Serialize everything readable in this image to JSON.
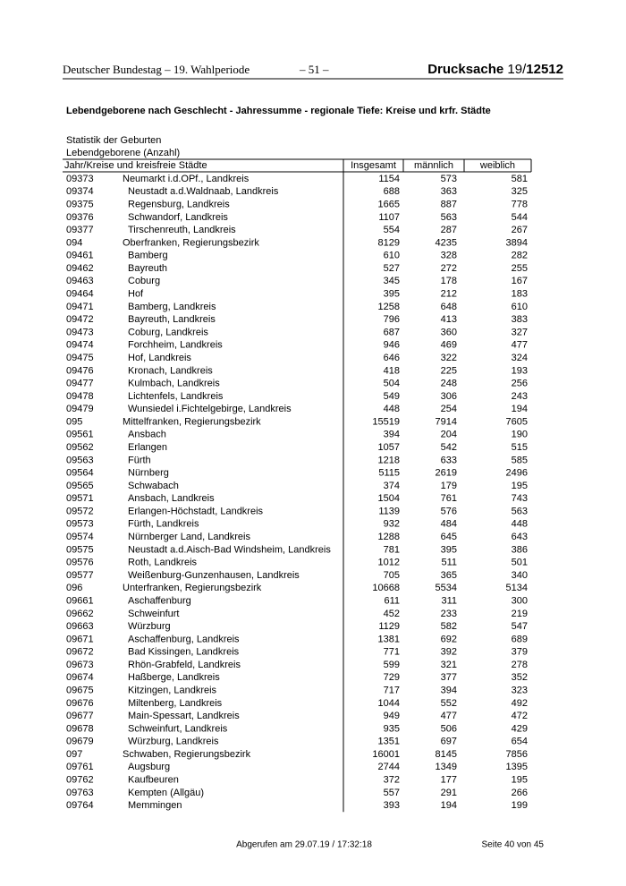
{
  "header": {
    "left": "Deutscher Bundestag – 19. Wahlperiode",
    "center": "– 51 –",
    "doc_label": "Drucksache",
    "doc_prefix": "19/",
    "doc_number": "12512"
  },
  "title": "Lebendgeborene nach Geschlecht - Jahressumme - regionale Tiefe: Kreise und krfr. Städte",
  "subtitle1": "Statistik der Geburten",
  "subtitle2": "Lebendgeborene (Anzahl)",
  "table": {
    "columns": [
      "Jahr/Kreise und kreisfreie Städte",
      "Insgesamt",
      "männlich",
      "weiblich"
    ],
    "rows": [
      [
        "09373",
        "Neumarkt i.d.OPf., Landkreis",
        1154,
        573,
        581
      ],
      [
        "09374",
        "Neustadt a.d.Waldnaab, Landkreis",
        688,
        363,
        325
      ],
      [
        "09375",
        "Regensburg, Landkreis",
        1665,
        887,
        778
      ],
      [
        "09376",
        "Schwandorf, Landkreis",
        1107,
        563,
        544
      ],
      [
        "09377",
        "Tirschenreuth, Landkreis",
        554,
        287,
        267
      ],
      [
        "094",
        "Oberfranken, Regierungsbezirk",
        8129,
        4235,
        3894
      ],
      [
        "09461",
        "Bamberg",
        610,
        328,
        282
      ],
      [
        "09462",
        "Bayreuth",
        527,
        272,
        255
      ],
      [
        "09463",
        "Coburg",
        345,
        178,
        167
      ],
      [
        "09464",
        "Hof",
        395,
        212,
        183
      ],
      [
        "09471",
        "Bamberg, Landkreis",
        1258,
        648,
        610
      ],
      [
        "09472",
        "Bayreuth, Landkreis",
        796,
        413,
        383
      ],
      [
        "09473",
        "Coburg, Landkreis",
        687,
        360,
        327
      ],
      [
        "09474",
        "Forchheim, Landkreis",
        946,
        469,
        477
      ],
      [
        "09475",
        "Hof, Landkreis",
        646,
        322,
        324
      ],
      [
        "09476",
        "Kronach, Landkreis",
        418,
        225,
        193
      ],
      [
        "09477",
        "Kulmbach, Landkreis",
        504,
        248,
        256
      ],
      [
        "09478",
        "Lichtenfels, Landkreis",
        549,
        306,
        243
      ],
      [
        "09479",
        "Wunsiedel i.Fichtelgebirge, Landkreis",
        448,
        254,
        194
      ],
      [
        "095",
        "Mittelfranken, Regierungsbezirk",
        15519,
        7914,
        7605
      ],
      [
        "09561",
        "Ansbach",
        394,
        204,
        190
      ],
      [
        "09562",
        "Erlangen",
        1057,
        542,
        515
      ],
      [
        "09563",
        "Fürth",
        1218,
        633,
        585
      ],
      [
        "09564",
        "Nürnberg",
        5115,
        2619,
        2496
      ],
      [
        "09565",
        "Schwabach",
        374,
        179,
        195
      ],
      [
        "09571",
        "Ansbach, Landkreis",
        1504,
        761,
        743
      ],
      [
        "09572",
        "Erlangen-Höchstadt, Landkreis",
        1139,
        576,
        563
      ],
      [
        "09573",
        "Fürth, Landkreis",
        932,
        484,
        448
      ],
      [
        "09574",
        "Nürnberger Land, Landkreis",
        1288,
        645,
        643
      ],
      [
        "09575",
        "Neustadt a.d.Aisch-Bad Windsheim, Landkreis",
        781,
        395,
        386
      ],
      [
        "09576",
        "Roth, Landkreis",
        1012,
        511,
        501
      ],
      [
        "09577",
        "Weißenburg-Gunzenhausen, Landkreis",
        705,
        365,
        340
      ],
      [
        "096",
        "Unterfranken, Regierungsbezirk",
        10668,
        5534,
        5134
      ],
      [
        "09661",
        "Aschaffenburg",
        611,
        311,
        300
      ],
      [
        "09662",
        "Schweinfurt",
        452,
        233,
        219
      ],
      [
        "09663",
        "Würzburg",
        1129,
        582,
        547
      ],
      [
        "09671",
        "Aschaffenburg, Landkreis",
        1381,
        692,
        689
      ],
      [
        "09672",
        "Bad Kissingen, Landkreis",
        771,
        392,
        379
      ],
      [
        "09673",
        "Rhön-Grabfeld, Landkreis",
        599,
        321,
        278
      ],
      [
        "09674",
        "Haßberge, Landkreis",
        729,
        377,
        352
      ],
      [
        "09675",
        "Kitzingen, Landkreis",
        717,
        394,
        323
      ],
      [
        "09676",
        "Miltenberg, Landkreis",
        1044,
        552,
        492
      ],
      [
        "09677",
        "Main-Spessart, Landkreis",
        949,
        477,
        472
      ],
      [
        "09678",
        "Schweinfurt, Landkreis",
        935,
        506,
        429
      ],
      [
        "09679",
        "Würzburg, Landkreis",
        1351,
        697,
        654
      ],
      [
        "097",
        "Schwaben, Regierungsbezirk",
        16001,
        8145,
        7856
      ],
      [
        "09761",
        "Augsburg",
        2744,
        1349,
        1395
      ],
      [
        "09762",
        "Kaufbeuren",
        372,
        177,
        195
      ],
      [
        "09763",
        "Kempten (Allgäu)",
        557,
        291,
        266
      ],
      [
        "09764",
        "Memmingen",
        393,
        194,
        199
      ]
    ]
  },
  "footer": {
    "retrieved": "Abgerufen am 29.07.19 / 17:32:18",
    "page": "Seite 40 von 45"
  }
}
